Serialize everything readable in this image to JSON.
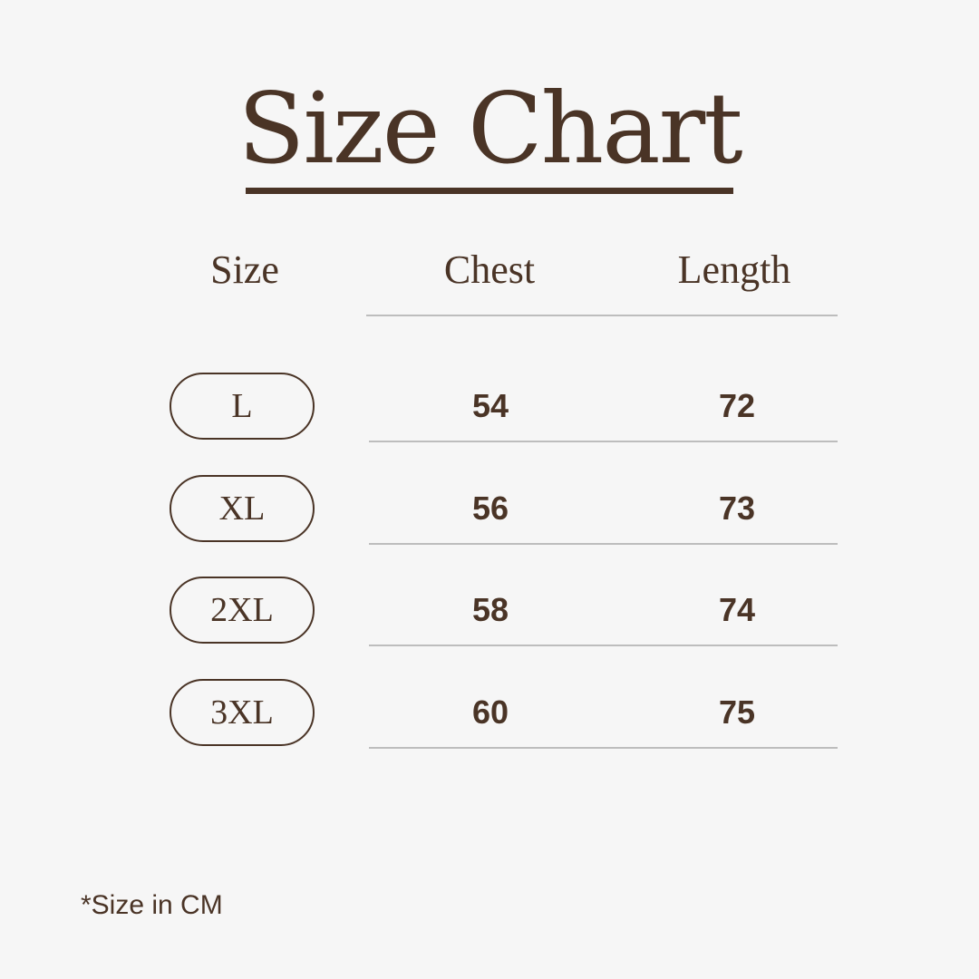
{
  "title": "Size Chart",
  "headers": [
    "Size",
    "Chest",
    "Length"
  ],
  "rows": [
    {
      "size": "L",
      "chest": "54",
      "length": "72"
    },
    {
      "size": "XL",
      "chest": "56",
      "length": "73"
    },
    {
      "size": "2XL",
      "chest": "58",
      "length": "74"
    },
    {
      "size": "3XL",
      "chest": "60",
      "length": "75"
    }
  ],
  "note": "*Size in CM"
}
